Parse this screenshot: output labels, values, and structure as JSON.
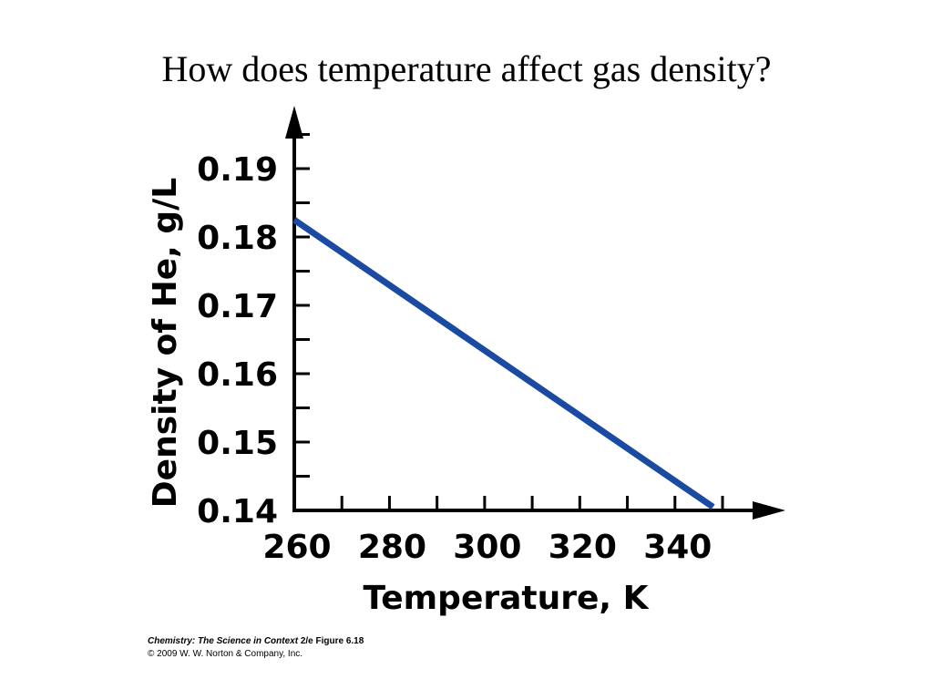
{
  "slide": {
    "title": "How does temperature affect gas density?"
  },
  "credit": {
    "book_title": "Chemistry: The Science in Context",
    "edition_figure": "2/e  Figure 6.18",
    "copyright": "© 2009 W. W. Norton & Company, Inc."
  },
  "colors": {
    "series": "#1b4aa3",
    "axis": "#000000"
  },
  "chart_data": {
    "type": "line",
    "title": "",
    "xlabel": "Temperature, K",
    "ylabel": "Density of He, g/L",
    "xlim": [
      260,
      350
    ],
    "ylim": [
      0.14,
      0.19
    ],
    "x_ticks": [
      "260",
      "280",
      "300",
      "320",
      "340"
    ],
    "y_ticks": [
      "0.14",
      "0.15",
      "0.16",
      "0.17",
      "0.18",
      "0.19"
    ],
    "grid": false,
    "legend": "none",
    "series": [
      {
        "name": "",
        "x": [
          260,
          348
        ],
        "y": [
          0.1825,
          0.1405
        ]
      }
    ]
  }
}
